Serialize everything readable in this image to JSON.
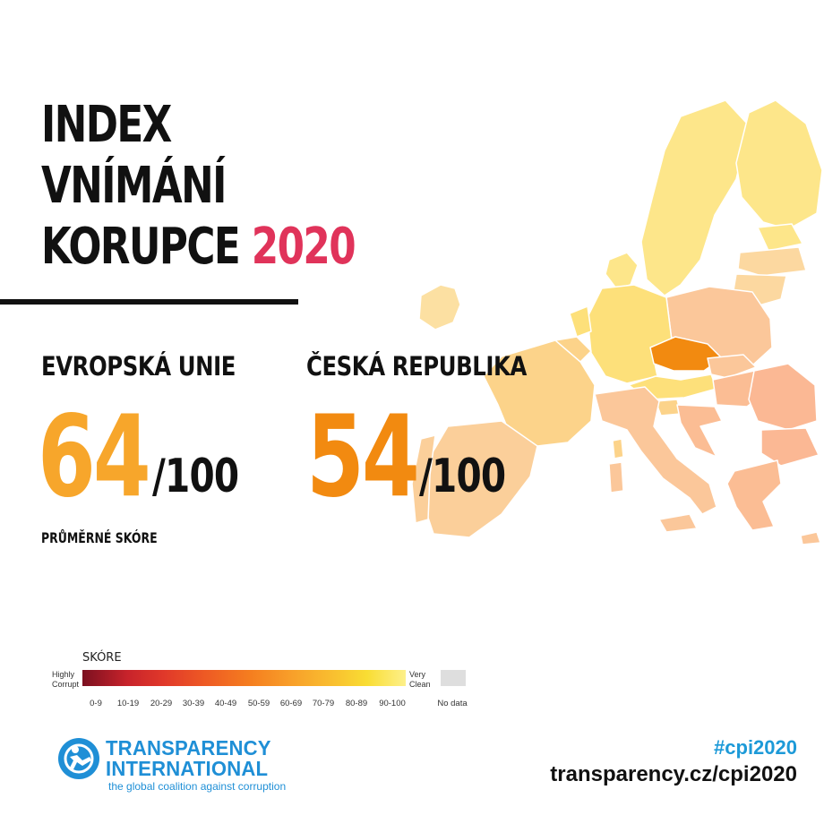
{
  "title": {
    "line1": "INDEX",
    "line2": "VNÍMÁNÍ",
    "line3": "KORUPCE",
    "year": "2020",
    "year_color": "#e0335a"
  },
  "eu": {
    "label": "EVROPSKÁ UNIE",
    "score": "64",
    "out_of": "/100",
    "note": "PRŮMĚRNÉ SKÓRE",
    "color": "#f7a62b"
  },
  "cz": {
    "label": "ČESKÁ REPUBLIKA",
    "score": "54",
    "out_of": "/100",
    "color": "#f28a10"
  },
  "legend": {
    "title": "SKÓRE",
    "low_label_1": "Highly",
    "low_label_2": "Corrupt",
    "high_label_1": "Very",
    "high_label_2": "Clean",
    "ranges": [
      "0-9",
      "10-19",
      "20-29",
      "30-39",
      "40-49",
      "50-59",
      "60-69",
      "70-79",
      "80-89",
      "90-100"
    ],
    "no_data": "No data"
  },
  "logo": {
    "line1": "TRANSPARENCY",
    "line2": "INTERNATIONAL",
    "tagline": "the global coalition against corruption",
    "color": "#1f8fd6"
  },
  "footer": {
    "hashtag": "#cpi2020",
    "url": "transparency.cz/cpi2020"
  },
  "map": {
    "highlight": "Czech Republic"
  }
}
